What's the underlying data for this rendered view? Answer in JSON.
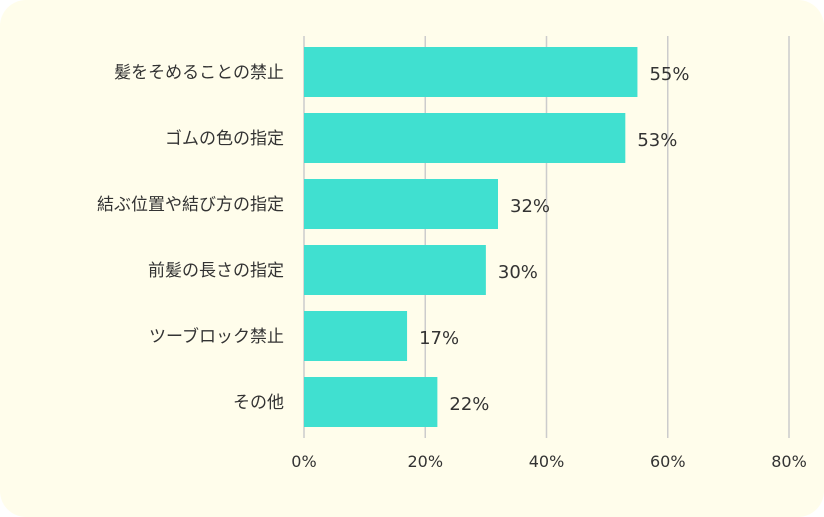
{
  "chart_data": {
    "type": "bar",
    "orientation": "horizontal",
    "categories": [
      "髪をそめることの禁止",
      "ゴムの色の指定",
      "結ぶ位置や結び方の指定",
      "前髪の長さの指定",
      "ツーブロック禁止",
      "その他"
    ],
    "values": [
      55,
      53,
      32,
      30,
      17,
      22
    ],
    "value_labels": [
      "55%",
      "53%",
      "32%",
      "30%",
      "17%",
      "22%"
    ],
    "xlim": [
      0,
      80
    ],
    "x_ticks": [
      0,
      20,
      40,
      60,
      80
    ],
    "x_tick_labels": [
      "0%",
      "20%",
      "40%",
      "60%",
      "80%"
    ],
    "grid": true,
    "bar_color": "#40e0d0",
    "grid_color": "#cccccc",
    "background_color": "#fffdeb"
  }
}
